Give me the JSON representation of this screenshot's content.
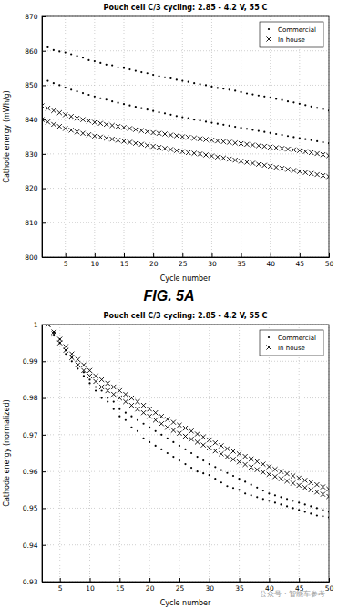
{
  "chart_data": [
    {
      "type": "scatter",
      "title": "Pouch cell C/3 cycling: 2.85 - 4.2 V, 55 C",
      "x_label": "Cycle number",
      "y_label": "Cathode energy (mWh/g)",
      "x": [
        1,
        2,
        3,
        4,
        5,
        6,
        7,
        8,
        9,
        10,
        11,
        12,
        13,
        14,
        15,
        16,
        17,
        18,
        19,
        20,
        21,
        22,
        23,
        24,
        25,
        26,
        27,
        28,
        29,
        30,
        31,
        32,
        33,
        34,
        35,
        36,
        37,
        38,
        39,
        40,
        41,
        42,
        43,
        44,
        45,
        46,
        47,
        48,
        49,
        50
      ],
      "series": [
        {
          "name": "Commercial",
          "color": "#000000",
          "marker": "dot",
          "values": [
            861.5,
            861,
            860.2,
            859.8,
            859.5,
            859,
            858.5,
            858,
            857.3,
            857,
            856.5,
            856,
            855.8,
            855.2,
            855,
            854.6,
            854.2,
            853.8,
            853.5,
            853,
            852.6,
            852.3,
            852,
            851.6,
            851.3,
            851,
            850.6,
            850.3,
            850,
            849.6,
            849.2,
            849,
            848.7,
            848.4,
            848,
            847.6,
            847.3,
            847,
            846.7,
            846.4,
            846,
            845.7,
            845.3,
            845,
            844.6,
            844.2,
            843.8,
            843.4,
            843,
            842.6
          ]
        },
        {
          "name": "Commercial",
          "color": "#000000",
          "marker": "dot",
          "values": [
            852,
            851.3,
            850.6,
            850,
            849.3,
            848.7,
            848.2,
            847.7,
            847.2,
            846.7,
            846.2,
            845.8,
            845.3,
            844.9,
            844.5,
            844.1,
            843.7,
            843.3,
            842.9,
            842.5,
            842.1,
            841.8,
            841.4,
            841,
            840.7,
            840.4,
            840,
            839.7,
            839.4,
            839.1,
            838.8,
            838.5,
            838.2,
            837.9,
            837.6,
            837.3,
            837,
            836.7,
            836.4,
            836.1,
            835.8,
            835.5,
            835.2,
            834.9,
            834.6,
            834.3,
            834,
            833.7,
            833.4,
            833.1
          ]
        },
        {
          "name": "In house",
          "color": "#000000",
          "marker": "x",
          "values": [
            844,
            843.3,
            842.6,
            842,
            841.4,
            840.9,
            840.4,
            840,
            839.6,
            839.2,
            838.9,
            838.6,
            838.3,
            838,
            837.7,
            837.4,
            837.1,
            836.8,
            836.5,
            836.2,
            836,
            835.8,
            835.5,
            835.3,
            835,
            834.8,
            834.6,
            834.4,
            834.2,
            834,
            833.8,
            833.6,
            833.4,
            833.2,
            833,
            832.8,
            832.6,
            832.4,
            832.2,
            832,
            831.8,
            831.6,
            831.4,
            831.2,
            831,
            830.7,
            830.4,
            830.1,
            829.8,
            829.5
          ]
        },
        {
          "name": "In house",
          "color": "#000000",
          "marker": "x",
          "values": [
            840,
            839.3,
            838.6,
            838,
            837.4,
            836.9,
            836.4,
            836,
            835.6,
            835.2,
            834.9,
            834.6,
            834.3,
            834,
            833.7,
            833.4,
            833.1,
            832.8,
            832.5,
            832.2,
            831.9,
            831.6,
            831.3,
            831,
            830.7,
            830.4,
            830.2,
            830,
            829.7,
            829.4,
            829.1,
            828.8,
            828.5,
            828.2,
            827.9,
            827.6,
            827.3,
            827,
            826.7,
            826.4,
            826.1,
            825.8,
            825.5,
            825.2,
            824.9,
            824.6,
            824.3,
            824,
            823.7,
            823.4
          ]
        }
      ],
      "xlim": [
        1,
        50
      ],
      "xticks": [
        5,
        10,
        15,
        20,
        25,
        30,
        35,
        40,
        45,
        50
      ],
      "ylim": [
        800,
        870
      ],
      "yticks": [
        800,
        810,
        820,
        830,
        840,
        850,
        860,
        870
      ],
      "grid": true,
      "legend": "upper right"
    },
    {
      "type": "scatter",
      "title": "Pouch cell C/3 cycling: 2.85 - 4.2 V, 55 C",
      "x_label": "Cycle number",
      "y_label": "Cathode energy (normalized)",
      "x": [
        3,
        4,
        5,
        6,
        7,
        8,
        9,
        10,
        11,
        12,
        13,
        14,
        15,
        16,
        17,
        18,
        19,
        20,
        21,
        22,
        23,
        24,
        25,
        26,
        27,
        28,
        29,
        30,
        31,
        32,
        33,
        34,
        35,
        36,
        37,
        38,
        39,
        40,
        41,
        42,
        43,
        44,
        45,
        46,
        47,
        48,
        49,
        50
      ],
      "series": [
        {
          "name": "Commercial",
          "color": "#000000",
          "marker": "dot",
          "values": [
            1.0,
            0.997,
            0.995,
            0.992,
            0.99,
            0.988,
            0.986,
            0.984,
            0.982,
            0.98,
            0.979,
            0.977,
            0.975,
            0.974,
            0.972,
            0.971,
            0.969,
            0.968,
            0.967,
            0.966,
            0.965,
            0.964,
            0.963,
            0.962,
            0.961,
            0.96,
            0.9595,
            0.959,
            0.958,
            0.957,
            0.956,
            0.9555,
            0.955,
            0.954,
            0.9535,
            0.953,
            0.9525,
            0.952,
            0.9515,
            0.951,
            0.9505,
            0.95,
            0.9495,
            0.949,
            0.9485,
            0.948,
            0.9478,
            0.9475
          ]
        },
        {
          "name": "Commercial",
          "color": "#000000",
          "marker": "dot",
          "values": [
            1.0,
            0.998,
            0.996,
            0.993,
            0.991,
            0.989,
            0.987,
            0.985,
            0.983,
            0.982,
            0.98,
            0.979,
            0.977,
            0.976,
            0.975,
            0.974,
            0.973,
            0.972,
            0.971,
            0.97,
            0.969,
            0.968,
            0.967,
            0.966,
            0.965,
            0.964,
            0.963,
            0.962,
            0.9612,
            0.9604,
            0.9596,
            0.9588,
            0.958,
            0.9572,
            0.9564,
            0.9556,
            0.9548,
            0.954,
            0.9535,
            0.953,
            0.9525,
            0.952,
            0.9515,
            0.951,
            0.9505,
            0.95,
            0.9495,
            0.949
          ]
        },
        {
          "name": "In house",
          "color": "#000000",
          "marker": "x",
          "values": [
            1.0,
            0.998,
            0.996,
            0.994,
            0.992,
            0.9905,
            0.989,
            0.9875,
            0.986,
            0.985,
            0.984,
            0.983,
            0.982,
            0.981,
            0.98,
            0.979,
            0.978,
            0.977,
            0.976,
            0.975,
            0.9742,
            0.9734,
            0.9726,
            0.9718,
            0.971,
            0.9702,
            0.9694,
            0.9686,
            0.9678,
            0.967,
            0.9662,
            0.9655,
            0.9648,
            0.9641,
            0.9634,
            0.9627,
            0.962,
            0.9613,
            0.9606,
            0.96,
            0.9594,
            0.9588,
            0.9582,
            0.9576,
            0.957,
            0.9564,
            0.9558,
            0.9552
          ]
        },
        {
          "name": "In house",
          "color": "#000000",
          "marker": "x",
          "values": [
            1.0,
            0.9975,
            0.995,
            0.993,
            0.991,
            0.989,
            0.9875,
            0.986,
            0.9845,
            0.983,
            0.982,
            0.981,
            0.98,
            0.979,
            0.978,
            0.977,
            0.976,
            0.975,
            0.974,
            0.973,
            0.972,
            0.9712,
            0.9704,
            0.9696,
            0.9688,
            0.968,
            0.9672,
            0.9664,
            0.9656,
            0.9648,
            0.964,
            0.9633,
            0.9626,
            0.9619,
            0.9612,
            0.9605,
            0.9598,
            0.9592,
            0.9586,
            0.958,
            0.9574,
            0.9568,
            0.9562,
            0.9556,
            0.955,
            0.9544,
            0.9538,
            0.9532
          ]
        }
      ],
      "xlim": [
        2,
        50
      ],
      "xticks": [
        5,
        10,
        15,
        20,
        25,
        30,
        35,
        40,
        45,
        50
      ],
      "ylim": [
        0.93,
        1
      ],
      "yticks": [
        0.93,
        0.94,
        0.95,
        0.96,
        0.97,
        0.98,
        0.99,
        1
      ],
      "grid": true,
      "legend": "upper right"
    }
  ],
  "figure_label": "FIG. 5A",
  "watermark": "公众号 · 智能车参考"
}
